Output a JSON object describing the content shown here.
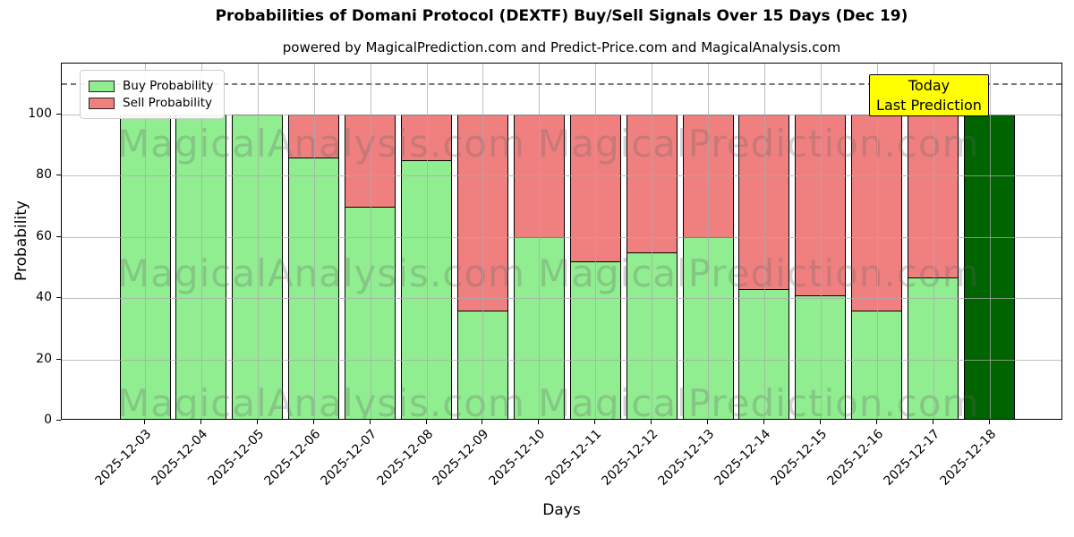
{
  "title": "Probabilities of Domani Protocol (DEXTF) Buy/Sell Signals Over 15 Days (Dec 19)",
  "subtitle": "powered by MagicalPrediction.com and Predict-Price.com and MagicalAnalysis.com",
  "legend": {
    "items": [
      {
        "label": "Buy Probability",
        "color": "#90ee90"
      },
      {
        "label": "Sell Probability",
        "color": "#f08080"
      }
    ]
  },
  "annotation": {
    "line1": "Today",
    "line2": "Last Prediction",
    "bg_color": "#ffff00"
  },
  "watermarks": {
    "left_text": "MagicalAnalysis.com",
    "right_text": "MagicalPrediction.com"
  },
  "chart_data": {
    "type": "bar",
    "stacked": true,
    "title": "Probabilities of Domani Protocol (DEXTF) Buy/Sell Signals Over 15 Days (Dec 19)",
    "xlabel": "Days",
    "ylabel": "Probability",
    "categories": [
      "2025-12-03",
      "2025-12-04",
      "2025-12-05",
      "2025-12-06",
      "2025-12-07",
      "2025-12-08",
      "2025-12-09",
      "2025-12-10",
      "2025-12-11",
      "2025-12-12",
      "2025-12-13",
      "2025-12-14",
      "2025-12-15",
      "2025-12-16",
      "2025-12-17",
      "2025-12-18"
    ],
    "series": [
      {
        "name": "Buy Probability",
        "color": "#90ee90",
        "values": [
          100,
          100,
          100,
          86,
          70,
          85,
          36,
          60,
          52,
          55,
          60,
          43,
          41,
          36,
          47,
          100
        ]
      },
      {
        "name": "Sell Probability",
        "color": "#f08080",
        "values": [
          0,
          0,
          0,
          14,
          30,
          15,
          64,
          40,
          48,
          45,
          40,
          57,
          59,
          64,
          53,
          0
        ]
      }
    ],
    "final_bar": {
      "index": 15,
      "color": "#006400",
      "meaning": "Today / Last Prediction"
    },
    "threshold_line": {
      "value": 110,
      "style": "dashed",
      "color": "#777777"
    },
    "ylim": [
      0,
      116.5
    ],
    "yticks": [
      0,
      20,
      40,
      60,
      80,
      100
    ],
    "grid": true,
    "bar_edge_color": "#000000",
    "legend_position": "upper-left"
  }
}
